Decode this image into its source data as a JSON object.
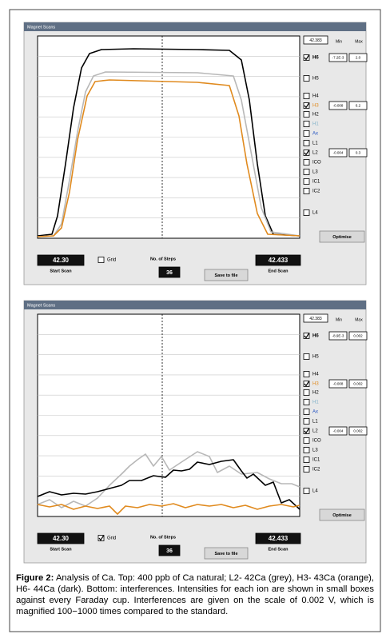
{
  "panels": [
    {
      "title": "Magnet Scans",
      "scan_value": "42.383",
      "min_label": "Min",
      "max_label": "Max",
      "channels": [
        {
          "label": "H6",
          "checked": true,
          "color": "#000",
          "min": "-7.2E-3",
          "max": "2.0"
        },
        {
          "label": "H5",
          "checked": false,
          "color": "#000"
        },
        {
          "label": "H4",
          "checked": false,
          "color": "#000"
        },
        {
          "label": "H3",
          "checked": true,
          "color": "#e08a1e",
          "min": "-0.008",
          "max": "6.2"
        },
        {
          "label": "H2",
          "checked": false,
          "color": "#000"
        },
        {
          "label": "H1",
          "checked": false,
          "color": "#7fb0c8"
        },
        {
          "label": "Ax",
          "checked": false,
          "color": "#2050c0"
        },
        {
          "label": "L1",
          "checked": false,
          "color": "#000"
        },
        {
          "label": "L2",
          "checked": true,
          "color": "#000",
          "min": "-0.004",
          "max": "0.3"
        },
        {
          "label": "ICO",
          "checked": false,
          "color": "#000"
        },
        {
          "label": "L3",
          "checked": false,
          "color": "#000"
        },
        {
          "label": "IC1",
          "checked": false,
          "color": "#000"
        },
        {
          "label": "IC2",
          "checked": false,
          "color": "#000"
        },
        {
          "label": "L4",
          "checked": false,
          "color": "#000"
        }
      ],
      "optimise": "Optimise",
      "start_value": "42.30",
      "start_label": "Start Scan",
      "grid_label": "Grid",
      "grid_checked": false,
      "steps_label": "No. of Steps",
      "steps_value": "36",
      "save_label": "Save to file",
      "end_value": "42.433",
      "end_label": "End Scan"
    },
    {
      "title": "Magnet Scans",
      "scan_value": "42.383",
      "min_label": "Min",
      "max_label": "Max",
      "channels": [
        {
          "label": "H6",
          "checked": true,
          "color": "#000",
          "min": "-8.9E-3",
          "max": "0.002"
        },
        {
          "label": "H5",
          "checked": false,
          "color": "#000"
        },
        {
          "label": "H4",
          "checked": false,
          "color": "#000"
        },
        {
          "label": "H3",
          "checked": true,
          "color": "#e08a1e",
          "min": "-0.008",
          "max": "0.002"
        },
        {
          "label": "H2",
          "checked": false,
          "color": "#000"
        },
        {
          "label": "H1",
          "checked": false,
          "color": "#7fb0c8"
        },
        {
          "label": "Ax",
          "checked": false,
          "color": "#2050c0"
        },
        {
          "label": "L1",
          "checked": false,
          "color": "#000"
        },
        {
          "label": "L2",
          "checked": true,
          "color": "#000",
          "min": "-0.004",
          "max": "0.002"
        },
        {
          "label": "ICO",
          "checked": false,
          "color": "#000"
        },
        {
          "label": "L3",
          "checked": false,
          "color": "#000"
        },
        {
          "label": "IC1",
          "checked": false,
          "color": "#000"
        },
        {
          "label": "IC2",
          "checked": false,
          "color": "#000"
        },
        {
          "label": "L4",
          "checked": false,
          "color": "#000"
        }
      ],
      "optimise": "Optimise",
      "start_value": "42.30",
      "start_label": "Start Scan",
      "grid_label": "Grid",
      "grid_checked": true,
      "steps_label": "No. of Steps",
      "steps_value": "36",
      "save_label": "Save to file",
      "end_value": "42.433",
      "end_label": "End Scan"
    }
  ],
  "caption": {
    "label": "Figure 2:",
    "text": "Analysis of Ca. Top: 400 ppb of Ca natural; L2- 42Ca (grey), H3- 43Ca (orange), H6- 44Ca (dark). Bottom: interferences. Intensities for each ion are shown in small boxes against every Faraday cup. Interferences are given on the scale of 0.002 V, which is magnified 100−1000 times compared to the standard."
  }
}
